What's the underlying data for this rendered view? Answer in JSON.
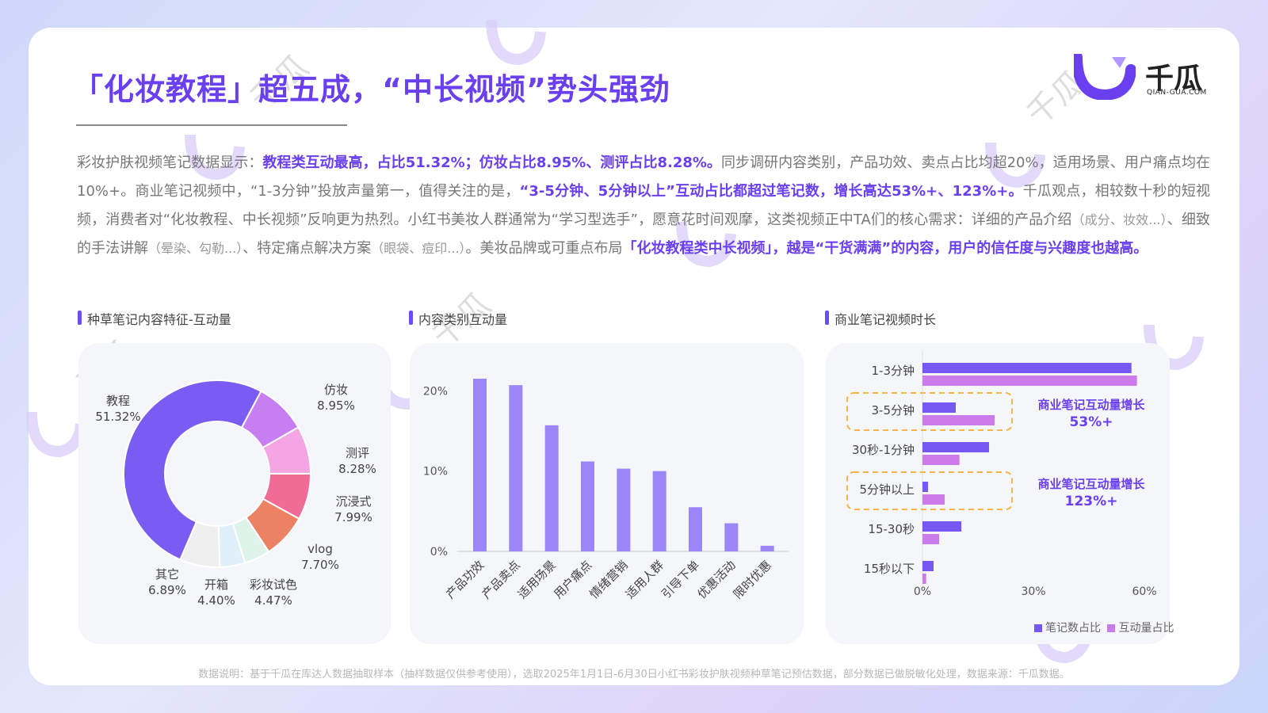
{
  "title": "「化妆教程」超五成，“中长视频”势头强劲",
  "logo": {
    "name": "千瓜",
    "url": "QIAN-GUA.COM"
  },
  "paragraph": [
    {
      "t": "彩妆护肤视频笔记数据显示：",
      "s": "n"
    },
    {
      "t": "教程类互动最高，占比51.32%；仿妆占比8.95%、测评占比8.28%。",
      "s": "hl"
    },
    {
      "t": "同步调研内容类别，产品功效、卖点占比均超20%，适用场景、用户痛点均在10%+。商业笔记视频中，“1-3分钟”投放声量第一，值得关注的是，",
      "s": "n"
    },
    {
      "t": "“3-5分钟、5分钟以上”互动占比都超过笔记数，增长高达53%+、123%+。",
      "s": "hl"
    },
    {
      "t": "千瓜观点，相较数十秒的短视频，消费者对“化妆教程、中长视频”反响更为热烈。小红书美妆人群通常为“学习型选手”，愿意花时间观摩，这类视频正中TA们的核心需求：详细的产品介绍",
      "s": "n"
    },
    {
      "t": "（成分、妆效...）",
      "s": "sm"
    },
    {
      "t": "、细致的手法讲解",
      "s": "n"
    },
    {
      "t": "（晕染、勾勒...）",
      "s": "sm"
    },
    {
      "t": "、特定痛点解决方案",
      "s": "n"
    },
    {
      "t": "（眼袋、痘印...）",
      "s": "sm"
    },
    {
      "t": "。美妆品牌或可重点布局",
      "s": "n"
    },
    {
      "t": "「化妆教程类中长视频」，越是“干货满满”的内容，用户的信任度与兴趣度也越高。",
      "s": "hl"
    }
  ],
  "sections": {
    "s1": "种草笔记内容特征-互动量",
    "s2": "内容类别互动量",
    "s3": "商业笔记视频时长"
  },
  "footnote": "数据说明：基于千瓜在库达人数据抽取样本（抽样数据仅供参考使用），选取2025年1月1日-6月30日小红书彩妆护肤视频种草笔记预估数据，部分数据已做脱敏化处理，数据来源：千瓜数据。",
  "watermark": {
    "name": "千瓜",
    "url": "QIAN-GUA.COM"
  },
  "colors": {
    "accent": "#6a3ff0",
    "bar": "#9a86f5",
    "series1": "#7657f1",
    "series2": "#cc7bea",
    "callout": "#f5b445"
  },
  "chart_data": [
    {
      "type": "pie",
      "labels": [
        "教程",
        "仿妆",
        "测评",
        "沉浸式",
        "vlog",
        "彩妆试色",
        "开箱",
        "其它"
      ],
      "values": [
        51.32,
        8.95,
        8.28,
        7.99,
        7.7,
        4.47,
        4.4,
        6.89
      ],
      "value_labels": [
        "51.32%",
        "8.95%",
        "8.28%",
        "7.99%",
        "7.70%",
        "4.47%",
        "4.40%",
        "6.89%"
      ],
      "colors": [
        "#7b5cf2",
        "#c77ef0",
        "#f4a6e4",
        "#f06b95",
        "#ea8263",
        "#def3ea",
        "#e0f0fb",
        "#efefef"
      ]
    },
    {
      "type": "bar",
      "categories": [
        "产品功效",
        "产品卖点",
        "适用场景",
        "用户痛点",
        "情绪营销",
        "适用人群",
        "引导下单",
        "优惠活动",
        "限时优惠"
      ],
      "values": [
        21.5,
        20.7,
        15.7,
        11.2,
        10.3,
        10.0,
        5.5,
        3.5,
        0.7
      ],
      "ylim": [
        0,
        22
      ],
      "yticks": [
        0,
        10,
        20
      ],
      "ytick_labels": [
        "0%",
        "10%",
        "20%"
      ]
    },
    {
      "type": "bar",
      "orientation": "horizontal",
      "categories": [
        "1-3分钟",
        "3-5分钟",
        "30秒-1分钟",
        "5分钟以上",
        "15-30秒",
        "15秒以下"
      ],
      "series": [
        {
          "name": "笔记数占比",
          "values": [
            56.5,
            9.0,
            18.0,
            1.5,
            10.5,
            3.0
          ]
        },
        {
          "name": "互动量占比",
          "values": [
            58.0,
            19.5,
            10.0,
            6.0,
            4.5,
            1.0
          ]
        }
      ],
      "xlim": [
        0,
        60
      ],
      "xticks": [
        0,
        30,
        60
      ],
      "xtick_labels": [
        "0%",
        "30%",
        "60%"
      ],
      "callouts": [
        {
          "category": "3-5分钟",
          "label": "商业笔记互动量增长",
          "value": "53%+"
        },
        {
          "category": "5分钟以上",
          "label": "商业笔记互动量增长",
          "value": "123%+"
        }
      ]
    }
  ]
}
